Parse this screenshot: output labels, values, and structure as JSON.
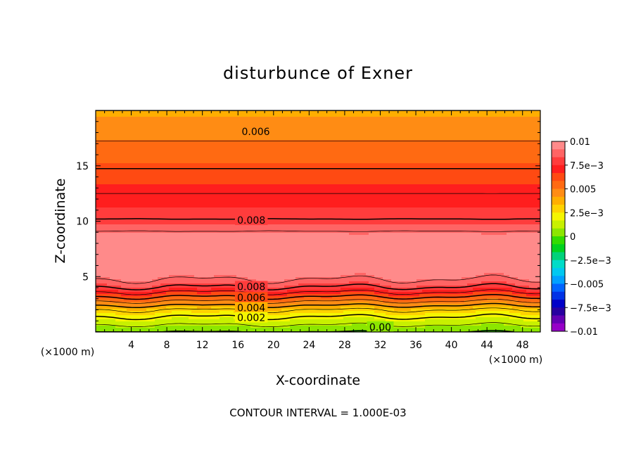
{
  "chart_data": {
    "type": "heatmap",
    "title": "disturbunce of Exner",
    "xlabel": "X-coordinate",
    "ylabel": "Z-coordinate",
    "x_unit": "(×1000 m)",
    "z_unit": "(×1000 m)",
    "footer": "CONTOUR INTERVAL = 1.000E-03",
    "xlim": [
      0,
      50
    ],
    "ylim": [
      0,
      20
    ],
    "x_ticks": [
      4,
      8,
      12,
      16,
      20,
      24,
      28,
      32,
      36,
      40,
      44,
      48
    ],
    "y_ticks": [
      5,
      10,
      15
    ],
    "colorbar": {
      "range": [
        -0.01,
        0.01
      ],
      "tick_values": [
        0.01,
        0.0075,
        0.005,
        0.0025,
        0,
        -0.0025,
        -0.005,
        -0.0075,
        -0.01
      ],
      "tick_labels": [
        "0.01",
        "7.5e−3",
        "0.005",
        "2.5e−3",
        "0",
        "−2.5e−3",
        "−0.005",
        "−7.5e−3",
        "−0.01"
      ],
      "colors": [
        "#ff8a8a",
        "#ff6464",
        "#ff3c3c",
        "#ff1e1e",
        "#ff4a12",
        "#ff6a12",
        "#ff8c14",
        "#ffae00",
        "#ffd200",
        "#f5f500",
        "#c8f000",
        "#8ce600",
        "#32dc00",
        "#00d21e",
        "#00d27a",
        "#00dcc8",
        "#00c8f0",
        "#00a0ff",
        "#0064ff",
        "#0032e6",
        "#0000c8",
        "#2800a0",
        "#6400b4",
        "#9600c8"
      ]
    },
    "profile_z": [
      0,
      0.5,
      1,
      1.5,
      2,
      2.5,
      3,
      3.5,
      4,
      4.5,
      5,
      5.5,
      6,
      7,
      8,
      9,
      10,
      11,
      12,
      13,
      14,
      15,
      16,
      17,
      18,
      19,
      20
    ],
    "profile_value": [
      0.0,
      0.0008,
      0.0015,
      0.0022,
      0.003,
      0.0043,
      0.0056,
      0.0068,
      0.0079,
      0.0087,
      0.0093,
      0.0097,
      0.0099,
      0.01,
      0.0098,
      0.0091,
      0.0081,
      0.0076,
      0.0072,
      0.0068,
      0.0063,
      0.0059,
      0.0055,
      0.0051,
      0.0047,
      0.0043,
      0.004
    ],
    "contour_labels": [
      {
        "text": "0.006",
        "x": 18,
        "z": 18.1
      },
      {
        "text": "0.008",
        "x": 17.5,
        "z": 10.1
      },
      {
        "text": "0.008",
        "x": 17.5,
        "z": 4.1
      },
      {
        "text": "0.006",
        "x": 17.5,
        "z": 3.1
      },
      {
        "text": "0.004",
        "x": 17.5,
        "z": 2.2
      },
      {
        "text": "0.002",
        "x": 17.5,
        "z": 1.3
      },
      {
        "text": "0.00",
        "x": 32,
        "z": 0.45
      }
    ]
  }
}
